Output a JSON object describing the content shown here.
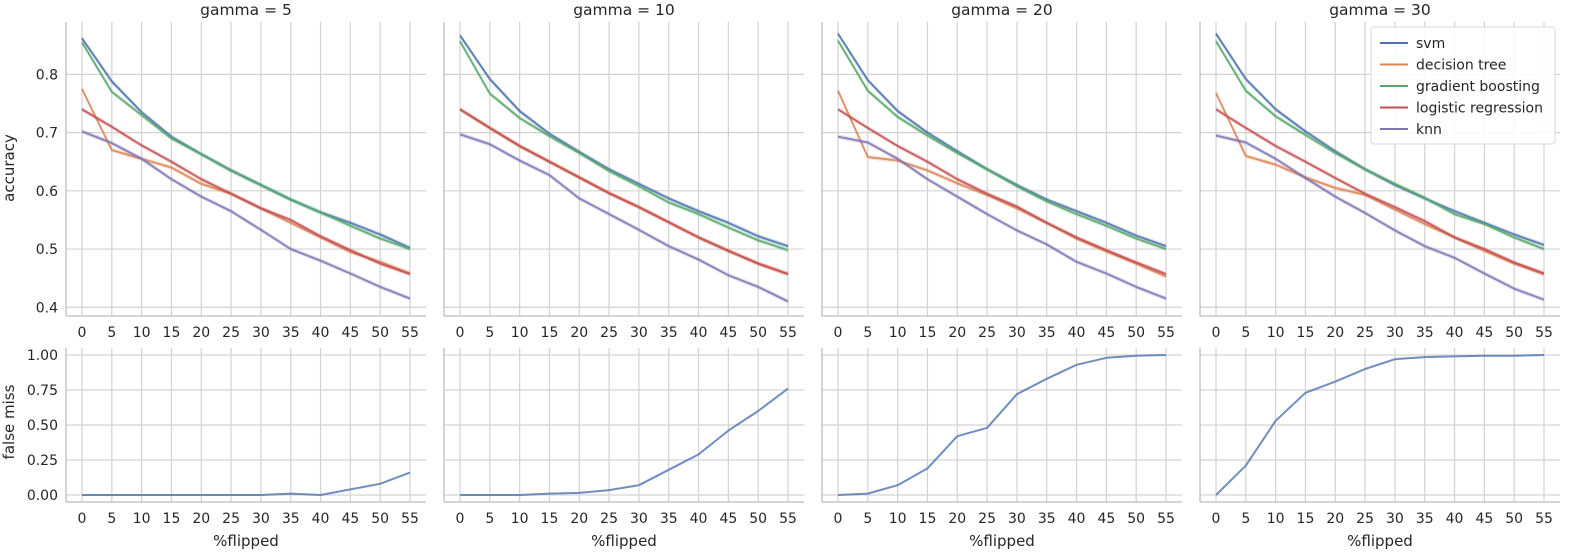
{
  "chart_data": {
    "type": "line",
    "x": [
      0,
      5,
      10,
      15,
      20,
      25,
      30,
      35,
      40,
      45,
      50,
      55
    ],
    "xticks": [
      "0",
      "5",
      "10",
      "15",
      "20",
      "25",
      "30",
      "35",
      "40",
      "45",
      "50",
      "55"
    ],
    "xlabel": "%flipped",
    "top_ylabel": "accuracy",
    "bottom_ylabel": "false miss",
    "top_ylim": [
      0.385,
      0.89
    ],
    "top_yticks": [
      "0.4",
      "0.5",
      "0.6",
      "0.7",
      "0.8"
    ],
    "bottom_ylim": [
      -0.05,
      1.05
    ],
    "bottom_yticks": [
      "0.00",
      "0.25",
      "0.50",
      "0.75",
      "1.00"
    ],
    "colors": {
      "svm": "#4c72b0",
      "decision tree": "#dd8452",
      "gradient boosting": "#55a868",
      "logistic regression": "#c44e52",
      "knn": "#8172b3"
    },
    "legend": {
      "placement": "top-right",
      "entries": [
        "svm",
        "decision tree",
        "gradient boosting",
        "logistic regression",
        "knn"
      ]
    },
    "panels": [
      {
        "title": "gamma = 5",
        "accuracy": {
          "svm": [
            0.862,
            0.788,
            0.735,
            0.693,
            0.663,
            0.635,
            0.61,
            0.585,
            0.563,
            0.545,
            0.525,
            0.502
          ],
          "decision tree": [
            0.775,
            0.67,
            0.655,
            0.64,
            0.612,
            0.595,
            0.57,
            0.545,
            0.52,
            0.495,
            0.478,
            0.458
          ],
          "gradient boosting": [
            0.855,
            0.77,
            0.73,
            0.69,
            0.663,
            0.635,
            0.61,
            0.585,
            0.563,
            0.54,
            0.518,
            0.5
          ],
          "logistic regression": [
            0.74,
            0.71,
            0.678,
            0.65,
            0.62,
            0.595,
            0.57,
            0.55,
            0.522,
            0.498,
            0.475,
            0.457
          ],
          "knn": [
            0.702,
            0.682,
            0.655,
            0.62,
            0.59,
            0.565,
            0.533,
            0.5,
            0.48,
            0.458,
            0.435,
            0.415
          ]
        },
        "false_miss": [
          0,
          0,
          0,
          0,
          0,
          0,
          0,
          0.01,
          0.0,
          0.04,
          0.08,
          0.16
        ]
      },
      {
        "title": "gamma = 10",
        "accuracy": {
          "svm": [
            0.867,
            0.792,
            0.737,
            0.698,
            0.667,
            0.637,
            0.612,
            0.587,
            0.565,
            0.545,
            0.522,
            0.505
          ],
          "decision tree": [
            0.74,
            0.708,
            0.677,
            0.65,
            0.623,
            0.596,
            0.572,
            0.546,
            0.52,
            0.497,
            0.475,
            0.457
          ],
          "gradient boosting": [
            0.857,
            0.767,
            0.725,
            0.694,
            0.665,
            0.634,
            0.608,
            0.58,
            0.56,
            0.537,
            0.515,
            0.498
          ],
          "logistic regression": [
            0.74,
            0.708,
            0.677,
            0.65,
            0.623,
            0.596,
            0.572,
            0.546,
            0.52,
            0.497,
            0.475,
            0.457
          ],
          "knn": [
            0.697,
            0.68,
            0.652,
            0.627,
            0.587,
            0.56,
            0.533,
            0.505,
            0.482,
            0.455,
            0.435,
            0.41
          ]
        },
        "false_miss": [
          0,
          0,
          0,
          0.01,
          0.015,
          0.035,
          0.07,
          0.18,
          0.29,
          0.46,
          0.6,
          0.76
        ]
      },
      {
        "title": "gamma = 20",
        "accuracy": {
          "svm": [
            0.87,
            0.79,
            0.737,
            0.7,
            0.668,
            0.637,
            0.61,
            0.585,
            0.565,
            0.545,
            0.523,
            0.505
          ],
          "decision tree": [
            0.772,
            0.658,
            0.652,
            0.635,
            0.613,
            0.593,
            0.57,
            0.545,
            0.518,
            0.496,
            0.475,
            0.453
          ],
          "gradient boosting": [
            0.858,
            0.772,
            0.727,
            0.695,
            0.665,
            0.637,
            0.608,
            0.582,
            0.56,
            0.54,
            0.518,
            0.5
          ],
          "logistic regression": [
            0.74,
            0.708,
            0.677,
            0.65,
            0.62,
            0.595,
            0.573,
            0.545,
            0.52,
            0.498,
            0.477,
            0.457
          ],
          "knn": [
            0.693,
            0.683,
            0.655,
            0.62,
            0.59,
            0.56,
            0.532,
            0.508,
            0.478,
            0.458,
            0.435,
            0.415
          ]
        },
        "false_miss": [
          0,
          0.01,
          0.07,
          0.19,
          0.42,
          0.48,
          0.72,
          0.83,
          0.93,
          0.98,
          0.995,
          1.0
        ]
      },
      {
        "title": "gamma = 30",
        "accuracy": {
          "svm": [
            0.87,
            0.792,
            0.74,
            0.702,
            0.668,
            0.637,
            0.61,
            0.587,
            0.565,
            0.545,
            0.525,
            0.507
          ],
          "decision tree": [
            0.768,
            0.66,
            0.645,
            0.623,
            0.605,
            0.593,
            0.568,
            0.543,
            0.52,
            0.497,
            0.475,
            0.457
          ],
          "gradient boosting": [
            0.857,
            0.772,
            0.728,
            0.696,
            0.665,
            0.637,
            0.612,
            0.588,
            0.56,
            0.543,
            0.52,
            0.5
          ],
          "logistic regression": [
            0.74,
            0.708,
            0.677,
            0.65,
            0.622,
            0.595,
            0.572,
            0.548,
            0.52,
            0.5,
            0.477,
            0.458
          ],
          "knn": [
            0.695,
            0.683,
            0.655,
            0.622,
            0.59,
            0.562,
            0.532,
            0.505,
            0.485,
            0.458,
            0.432,
            0.413
          ]
        },
        "false_miss": [
          0,
          0.21,
          0.53,
          0.73,
          0.81,
          0.9,
          0.97,
          0.985,
          0.99,
          0.995,
          0.995,
          1.0
        ]
      }
    ]
  }
}
